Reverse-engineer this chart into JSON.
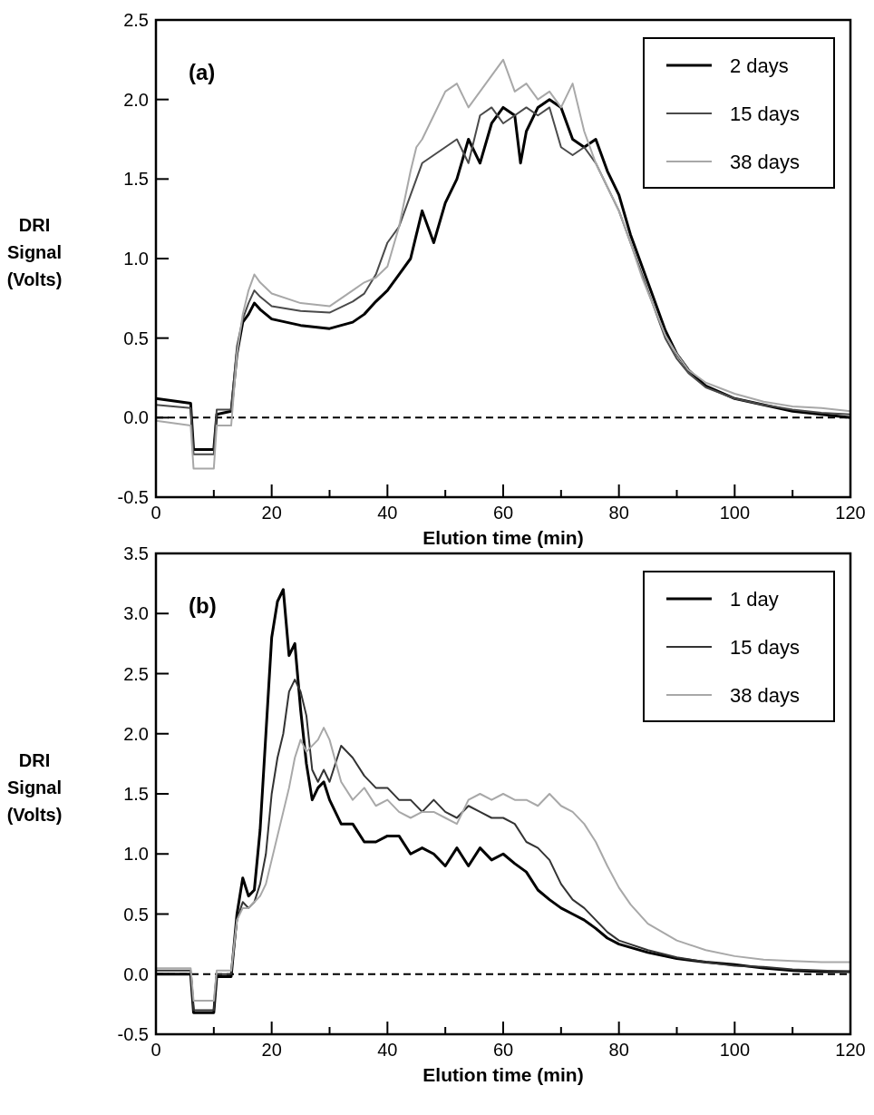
{
  "chart_data": [
    {
      "type": "line",
      "title": "(a)",
      "xlabel": "Elution time (min)",
      "ylabel": "DRI Signal (Volts)",
      "xlim": [
        0,
        120
      ],
      "xticks": [
        0,
        {
          "value": 10,
          "label": null
        },
        20,
        {
          "value": 30,
          "label": null
        },
        40,
        {
          "value": 50,
          "label": null
        },
        60,
        {
          "value": 70,
          "label": null
        },
        80,
        {
          "value": 90,
          "label": null
        },
        100,
        {
          "value": 110,
          "label": null
        },
        120
      ],
      "ylim": [
        -0.5,
        2.5
      ],
      "yticks": [
        -0.5,
        {
          "value": 0,
          "label": "0.0"
        },
        0.5,
        {
          "value": 1,
          "label": "1.0"
        },
        1.5,
        {
          "value": 2,
          "label": "2.0"
        },
        2.5
      ],
      "legend": "top right",
      "grid": false,
      "ref_lines": [
        {
          "axis": "y",
          "value": 0,
          "line_style": "dashed",
          "color": "#000000"
        }
      ],
      "series": [
        {
          "name": "2 days",
          "color": "#000000",
          "x": [
            0,
            6,
            6.5,
            10,
            10.5,
            13,
            14,
            15,
            16,
            17,
            18,
            20,
            25,
            30,
            34,
            36,
            38,
            40,
            42,
            44,
            45,
            46,
            47,
            48,
            50,
            52,
            54,
            56,
            58,
            60,
            62,
            63,
            64,
            66,
            68,
            70,
            72,
            74,
            76,
            78,
            80,
            82,
            84,
            86,
            88,
            90,
            92,
            95,
            100,
            105,
            110,
            115,
            120
          ],
          "values": [
            0.12,
            0.09,
            -0.2,
            -0.2,
            0.02,
            0.04,
            0.4,
            0.6,
            0.65,
            0.72,
            0.68,
            0.62,
            0.58,
            0.56,
            0.6,
            0.65,
            0.73,
            0.8,
            0.9,
            1.0,
            1.15,
            1.3,
            1.2,
            1.1,
            1.35,
            1.5,
            1.75,
            1.6,
            1.85,
            1.95,
            1.9,
            1.6,
            1.8,
            1.95,
            2.0,
            1.95,
            1.75,
            1.7,
            1.75,
            1.55,
            1.4,
            1.15,
            0.95,
            0.75,
            0.55,
            0.4,
            0.3,
            0.2,
            0.12,
            0.08,
            0.04,
            0.02,
            0.0
          ]
        },
        {
          "name": "15 days",
          "color": "#4a4a4a",
          "x": [
            0,
            6,
            6.5,
            10,
            10.5,
            13,
            14,
            15,
            16,
            17,
            18,
            20,
            25,
            30,
            34,
            36,
            38,
            40,
            42,
            44,
            45,
            46,
            48,
            50,
            52,
            54,
            56,
            58,
            60,
            62,
            64,
            66,
            68,
            70,
            72,
            74,
            76,
            78,
            80,
            82,
            84,
            86,
            88,
            90,
            92,
            95,
            100,
            105,
            110,
            115,
            120
          ],
          "values": [
            0.08,
            0.06,
            -0.23,
            -0.23,
            0.05,
            0.05,
            0.45,
            0.62,
            0.72,
            0.8,
            0.76,
            0.7,
            0.67,
            0.66,
            0.73,
            0.78,
            0.9,
            1.1,
            1.2,
            1.4,
            1.5,
            1.6,
            1.65,
            1.7,
            1.75,
            1.6,
            1.9,
            1.95,
            1.85,
            1.9,
            1.95,
            1.9,
            1.95,
            1.7,
            1.65,
            1.7,
            1.6,
            1.45,
            1.3,
            1.1,
            0.9,
            0.7,
            0.5,
            0.37,
            0.28,
            0.19,
            0.12,
            0.08,
            0.05,
            0.03,
            0.02
          ]
        },
        {
          "name": "38 days",
          "color": "#a8a8a8",
          "x": [
            0,
            6,
            6.5,
            10,
            10.5,
            13,
            14,
            15,
            16,
            17,
            18,
            20,
            25,
            30,
            34,
            36,
            38,
            40,
            42,
            44,
            45,
            46,
            48,
            50,
            52,
            54,
            56,
            58,
            60,
            62,
            64,
            66,
            68,
            70,
            72,
            74,
            76,
            78,
            80,
            82,
            84,
            86,
            88,
            90,
            92,
            95,
            100,
            105,
            110,
            115,
            120
          ],
          "values": [
            -0.02,
            -0.05,
            -0.32,
            -0.32,
            -0.05,
            -0.05,
            0.4,
            0.65,
            0.8,
            0.9,
            0.85,
            0.78,
            0.72,
            0.7,
            0.8,
            0.85,
            0.88,
            0.95,
            1.2,
            1.55,
            1.7,
            1.75,
            1.9,
            2.05,
            2.1,
            1.95,
            2.05,
            2.15,
            2.25,
            2.05,
            2.1,
            2.0,
            2.05,
            1.95,
            2.1,
            1.8,
            1.6,
            1.45,
            1.3,
            1.1,
            0.88,
            0.7,
            0.52,
            0.4,
            0.3,
            0.22,
            0.15,
            0.1,
            0.07,
            0.06,
            0.04
          ]
        }
      ]
    },
    {
      "type": "line",
      "title": "(b)",
      "xlabel": "Elution time (min)",
      "ylabel": "DRI Signal (Volts)",
      "xlim": [
        0,
        120
      ],
      "xticks": [
        0,
        {
          "value": 10,
          "label": null
        },
        20,
        {
          "value": 30,
          "label": null
        },
        40,
        {
          "value": 50,
          "label": null
        },
        60,
        {
          "value": 70,
          "label": null
        },
        80,
        {
          "value": 90,
          "label": null
        },
        100,
        {
          "value": 110,
          "label": null
        },
        120
      ],
      "ylim": [
        -0.5,
        3.5
      ],
      "yticks": [
        -0.5,
        {
          "value": 0,
          "label": "0.0"
        },
        0.5,
        {
          "value": 1,
          "label": "1.0"
        },
        1.5,
        {
          "value": 2,
          "label": "2.0"
        },
        2.5,
        {
          "value": 3,
          "label": "3.0"
        },
        3.5
      ],
      "legend": "top right",
      "grid": false,
      "ref_lines": [
        {
          "axis": "y",
          "value": 0,
          "line_style": "dashed",
          "color": "#000000"
        }
      ],
      "series": [
        {
          "name": "1 day",
          "color": "#000000",
          "x": [
            0,
            6,
            6.5,
            10,
            10.5,
            13,
            14,
            15,
            16,
            17,
            18,
            19,
            20,
            21,
            22,
            23,
            24,
            25,
            26,
            27,
            28,
            29,
            30,
            32,
            34,
            36,
            38,
            40,
            42,
            44,
            46,
            48,
            50,
            52,
            54,
            56,
            58,
            60,
            62,
            64,
            66,
            68,
            70,
            72,
            74,
            76,
            78,
            80,
            85,
            90,
            95,
            100,
            105,
            110,
            115,
            120
          ],
          "values": [
            0.0,
            0.0,
            -0.32,
            -0.32,
            -0.02,
            -0.02,
            0.5,
            0.8,
            0.65,
            0.7,
            1.2,
            2.0,
            2.8,
            3.1,
            3.2,
            2.65,
            2.75,
            2.2,
            1.75,
            1.45,
            1.55,
            1.6,
            1.45,
            1.25,
            1.25,
            1.1,
            1.1,
            1.15,
            1.15,
            1.0,
            1.05,
            1.0,
            0.9,
            1.05,
            0.9,
            1.05,
            0.95,
            1.0,
            0.92,
            0.85,
            0.7,
            0.62,
            0.55,
            0.5,
            0.45,
            0.38,
            0.3,
            0.25,
            0.18,
            0.13,
            0.1,
            0.08,
            0.05,
            0.03,
            0.02,
            0.02
          ]
        },
        {
          "name": "15 days",
          "color": "#333333",
          "x": [
            0,
            6,
            6.5,
            10,
            10.5,
            13,
            14,
            15,
            16,
            17,
            18,
            19,
            20,
            21,
            22,
            23,
            24,
            25,
            26,
            27,
            28,
            29,
            30,
            32,
            34,
            36,
            38,
            40,
            42,
            44,
            46,
            48,
            50,
            52,
            54,
            56,
            58,
            60,
            62,
            64,
            66,
            68,
            70,
            72,
            74,
            76,
            78,
            80,
            85,
            90,
            95,
            100,
            105,
            110,
            115,
            120
          ],
          "values": [
            0.03,
            0.03,
            -0.3,
            -0.3,
            0.0,
            0.0,
            0.45,
            0.6,
            0.55,
            0.6,
            0.75,
            1.0,
            1.5,
            1.8,
            2.0,
            2.35,
            2.45,
            2.35,
            2.15,
            1.7,
            1.6,
            1.7,
            1.6,
            1.9,
            1.8,
            1.65,
            1.55,
            1.55,
            1.45,
            1.45,
            1.35,
            1.45,
            1.35,
            1.3,
            1.4,
            1.35,
            1.3,
            1.3,
            1.25,
            1.1,
            1.05,
            0.95,
            0.75,
            0.62,
            0.55,
            0.45,
            0.35,
            0.28,
            0.2,
            0.14,
            0.1,
            0.07,
            0.06,
            0.04,
            0.03,
            0.02
          ]
        },
        {
          "name": "38 days",
          "color": "#a8a8a8",
          "x": [
            0,
            6,
            6.5,
            10,
            10.5,
            13,
            14,
            15,
            16,
            17,
            18,
            19,
            20,
            21,
            22,
            23,
            24,
            25,
            26,
            28,
            29,
            30,
            32,
            34,
            36,
            38,
            40,
            42,
            44,
            46,
            48,
            50,
            52,
            54,
            56,
            58,
            60,
            62,
            64,
            66,
            68,
            70,
            72,
            74,
            76,
            78,
            80,
            82,
            85,
            90,
            95,
            100,
            105,
            110,
            115,
            120
          ],
          "values": [
            0.05,
            0.05,
            -0.22,
            -0.22,
            0.03,
            0.03,
            0.45,
            0.55,
            0.55,
            0.6,
            0.65,
            0.75,
            0.95,
            1.15,
            1.35,
            1.55,
            1.8,
            1.95,
            1.85,
            1.95,
            2.05,
            1.95,
            1.6,
            1.45,
            1.55,
            1.4,
            1.45,
            1.35,
            1.3,
            1.35,
            1.35,
            1.3,
            1.25,
            1.45,
            1.5,
            1.45,
            1.5,
            1.45,
            1.45,
            1.4,
            1.5,
            1.4,
            1.35,
            1.25,
            1.1,
            0.9,
            0.72,
            0.58,
            0.42,
            0.28,
            0.2,
            0.15,
            0.12,
            0.11,
            0.1,
            0.1
          ]
        }
      ]
    }
  ]
}
